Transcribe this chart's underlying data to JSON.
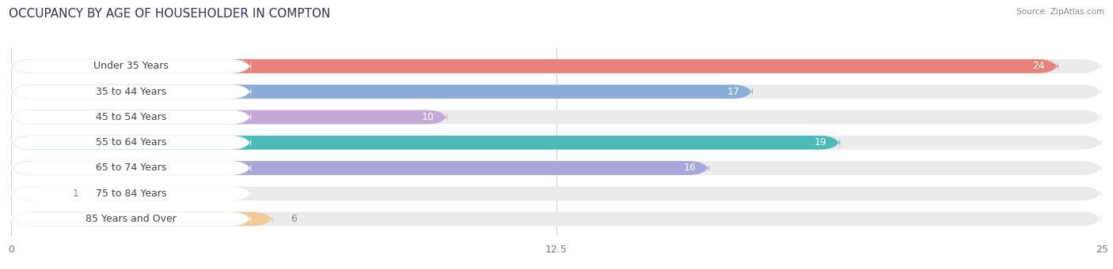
{
  "title": "OCCUPANCY BY AGE OF HOUSEHOLDER IN COMPTON",
  "source": "Source: ZipAtlas.com",
  "categories": [
    "Under 35 Years",
    "35 to 44 Years",
    "45 to 54 Years",
    "55 to 64 Years",
    "65 to 74 Years",
    "75 to 84 Years",
    "85 Years and Over"
  ],
  "values": [
    24,
    17,
    10,
    19,
    16,
    1,
    6
  ],
  "bar_colors": [
    "#E8827A",
    "#8AAED8",
    "#C4A8D8",
    "#4DBCB8",
    "#A8A8DC",
    "#F0A0B8",
    "#F4C898"
  ],
  "track_color": "#EBEBEB",
  "label_bg": "#FFFFFF",
  "xlim": [
    0,
    25
  ],
  "xticks": [
    0,
    12.5,
    25
  ],
  "title_fontsize": 11,
  "label_fontsize": 9,
  "value_fontsize": 9,
  "bar_height": 0.55,
  "background_color": "#FFFFFF",
  "label_text_color": "#444444",
  "value_color_inside": "#FFFFFF",
  "value_color_outside": "#888888"
}
